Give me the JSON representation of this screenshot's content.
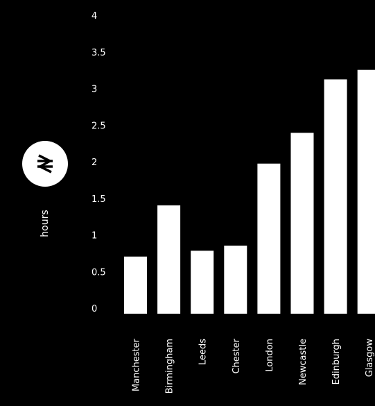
{
  "chart_data": {
    "type": "bar",
    "categories": [
      "Manchester",
      "Birmingham",
      "Leeds",
      "Chester",
      "London",
      "Newcastle",
      "Edinburgh",
      "Glasgow"
    ],
    "values": [
      0.78,
      1.48,
      0.86,
      0.93,
      2.05,
      2.47,
      3.2,
      3.33
    ],
    "ylabel": "hours",
    "ylim": [
      0,
      4
    ],
    "yticks": [
      "0",
      "0.5",
      "1",
      "1.5",
      "2",
      "2.5",
      "3",
      "3.5",
      "4"
    ],
    "bar_color": "#ffffff",
    "background": "#000000",
    "grid": false,
    "legend": "none"
  },
  "badge": {
    "icon": "national-rail-icon"
  }
}
